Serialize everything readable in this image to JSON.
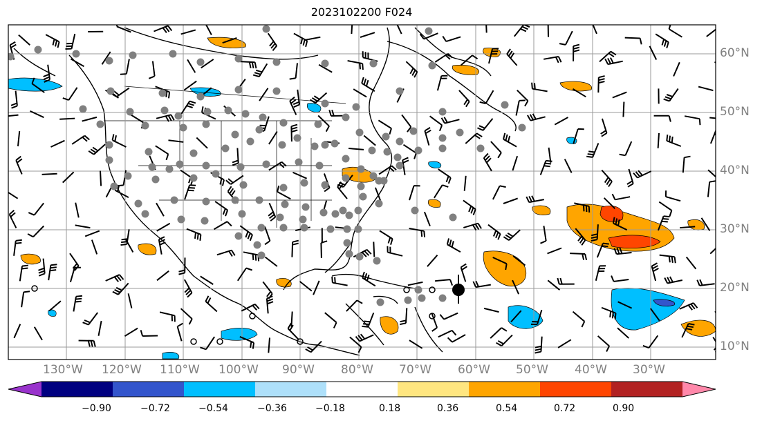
{
  "title": "2023102200 F024",
  "lon_labels": [
    "130°W",
    "120°W",
    "110°W",
    "100°W",
    "90°W",
    "80°W",
    "70°W",
    "60°W",
    "50°W",
    "40°W",
    "30°W"
  ],
  "lat_labels": [
    "60°N",
    "50°N",
    "40°N",
    "30°N",
    "20°N",
    "10°N"
  ],
  "colorbar": {
    "ticks": [
      "−0.90",
      "−0.72",
      "−0.54",
      "−0.36",
      "−0.18",
      "0.18",
      "0.36",
      "0.54",
      "0.72",
      "0.90"
    ],
    "colors": [
      "#9933cc",
      "#000080",
      "#3355cc",
      "#00bfff",
      "#aee0fa",
      "#ffffff",
      "#ffe680",
      "#ffa500",
      "#ff4500",
      "#b22222",
      "#ff88aa"
    ],
    "under_color": "#9933cc",
    "over_color": "#ff88aa"
  },
  "colors": {
    "grid": "#9a9a9a",
    "coast": "#000000",
    "stations": "#808080",
    "hurricane_marker": "#000000"
  },
  "icons": [
    "wind-barb-icon",
    "station-dot-icon",
    "hurricane-marker-icon"
  ]
}
